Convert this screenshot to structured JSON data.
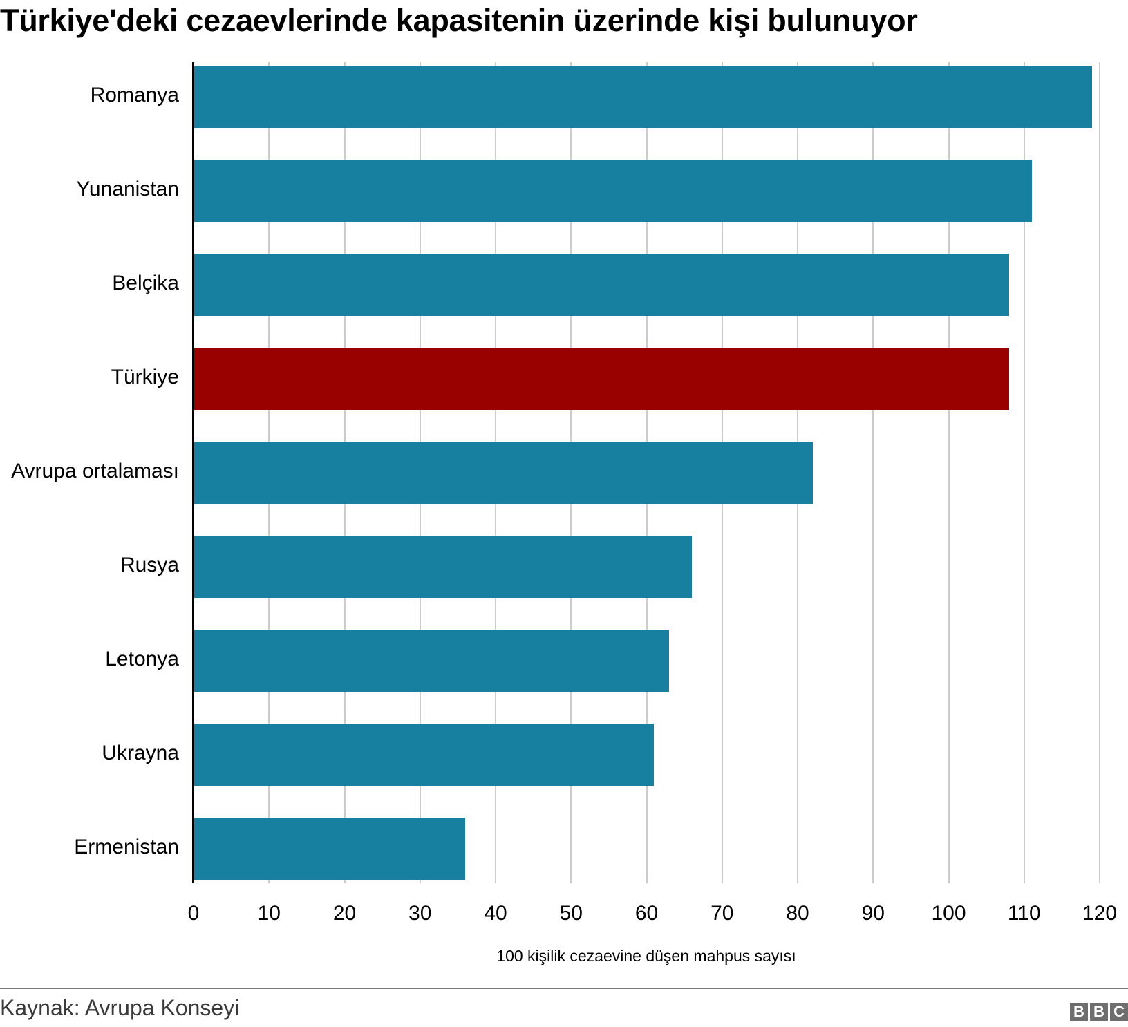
{
  "title": "Türkiye'deki cezaevlerinde kapasitenin üzerinde kişi bulunuyor",
  "xlabel": "100 kişilik cezaevine düşen mahpus sayısı",
  "source": "Kaynak: Avrupa Konseyi",
  "logo": [
    "B",
    "B",
    "C"
  ],
  "colors": {
    "default": "#1780a1",
    "highlight": "#990000",
    "grid": "#cccccc"
  },
  "chart_data": {
    "type": "bar",
    "orientation": "horizontal",
    "title": "Türkiye'deki cezaevlerinde kapasitenin üzerinde kişi bulunuyor",
    "xlabel": "100 kişilik cezaevine düşen mahpus sayısı",
    "ylabel": "",
    "categories": [
      "Romanya",
      "Yunanistan",
      "Belçika",
      "Türkiye",
      "Avrupa ortalaması",
      "Rusya",
      "Letonya",
      "Ukrayna",
      "Ermenistan"
    ],
    "values": [
      119,
      111,
      108,
      108,
      82,
      66,
      63,
      61,
      36
    ],
    "highlight": "Türkiye",
    "xlim": [
      0,
      120
    ],
    "xticks": [
      "0",
      "10",
      "20",
      "30",
      "40",
      "50",
      "60",
      "70",
      "80",
      "90",
      "100",
      "110",
      "120"
    ],
    "grid": true,
    "legend": null
  }
}
